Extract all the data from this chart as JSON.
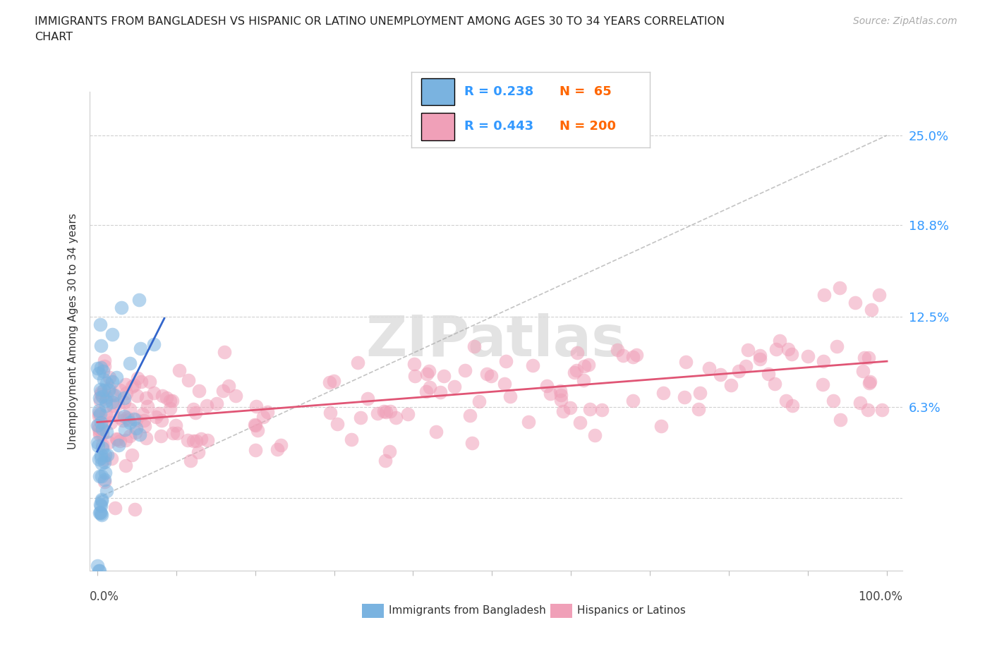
{
  "title_line1": "IMMIGRANTS FROM BANGLADESH VS HISPANIC OR LATINO UNEMPLOYMENT AMONG AGES 30 TO 34 YEARS CORRELATION",
  "title_line2": "CHART",
  "source": "Source: ZipAtlas.com",
  "ylabel": "Unemployment Among Ages 30 to 34 years",
  "blue_color": "#7ab3e0",
  "pink_color": "#f0a0b8",
  "blue_line_color": "#3366cc",
  "pink_line_color": "#e05575",
  "dash_color": "#aaaaaa",
  "blue_R": 0.238,
  "blue_N": 65,
  "pink_R": 0.443,
  "pink_N": 200,
  "legend1": "Immigrants from Bangladesh",
  "legend2": "Hispanics or Latinos",
  "R_color": "#3399ff",
  "N_color": "#ff6600",
  "watermark_color": "#dedede",
  "grid_color": "#d0d0d0",
  "ylim_min": -0.05,
  "ylim_max": 0.28,
  "xlim_min": -0.01,
  "xlim_max": 1.02
}
